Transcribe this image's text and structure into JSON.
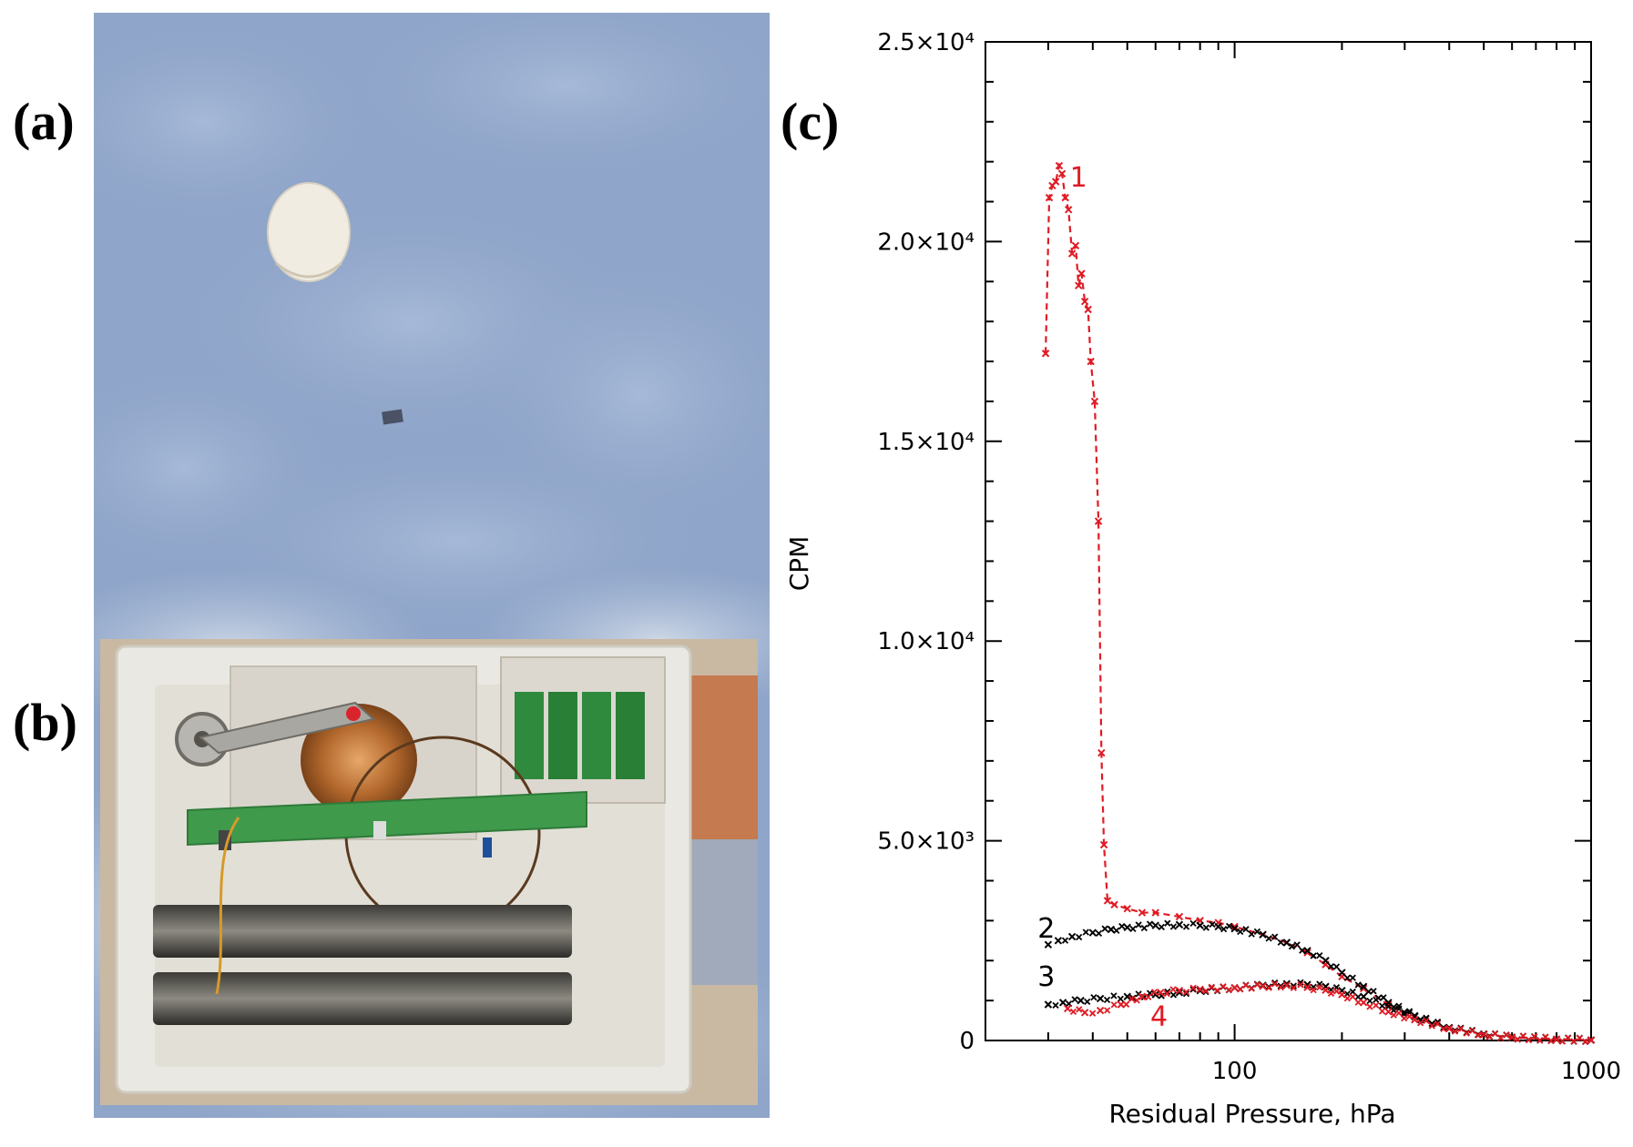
{
  "panels": {
    "a_label": "(a)",
    "b_label": "(b)",
    "c_label": "(c)"
  },
  "photos": {
    "sky_color": "#8fa5c9",
    "balloon_color": "#f1ece2",
    "foam_color": "#eae8e2"
  },
  "chart_data": {
    "type": "line",
    "xlabel": "Residual Pressure,  hPa",
    "ylabel": "CPM",
    "x_scale": "log",
    "xlim": [
      20,
      1000
    ],
    "ylim": [
      0,
      25000
    ],
    "x_ticks": [
      {
        "value": 100,
        "label": "100"
      },
      {
        "value": 1000,
        "label": "1000"
      }
    ],
    "y_ticks": [
      {
        "value": 0,
        "label": "0"
      },
      {
        "value": 5000,
        "label": "5.0×10³"
      },
      {
        "value": 10000,
        "label": "1.0×10⁴"
      },
      {
        "value": 15000,
        "label": "1.5×10⁴"
      },
      {
        "value": 20000,
        "label": "2.0×10⁴"
      },
      {
        "value": 25000,
        "label": "2.5×10⁴"
      }
    ],
    "series": [
      {
        "name": "1",
        "color": "#e01b24",
        "style": "dashed",
        "points": [
          [
            29.5,
            17200
          ],
          [
            30.2,
            21100
          ],
          [
            30.8,
            21400
          ],
          [
            31.5,
            21500
          ],
          [
            32.2,
            21900
          ],
          [
            32.8,
            21700
          ],
          [
            33.5,
            21100
          ],
          [
            34.2,
            20800
          ],
          [
            35,
            19700
          ],
          [
            35.8,
            19900
          ],
          [
            36.5,
            18900
          ],
          [
            37.2,
            19200
          ],
          [
            38,
            18500
          ],
          [
            38.8,
            18300
          ],
          [
            39.5,
            17000
          ],
          [
            40.5,
            16000
          ],
          [
            41.5,
            13000
          ],
          [
            42.3,
            7200
          ],
          [
            43,
            4900
          ],
          [
            44,
            3500
          ],
          [
            46,
            3400
          ],
          [
            50,
            3300
          ],
          [
            55,
            3200
          ],
          [
            60,
            3200
          ],
          [
            70,
            3100
          ],
          [
            80,
            3000
          ],
          [
            90,
            2950
          ],
          [
            100,
            2850
          ],
          [
            120,
            2650
          ],
          [
            140,
            2450
          ],
          [
            160,
            2200
          ],
          [
            180,
            1900
          ],
          [
            200,
            1600
          ],
          [
            230,
            1300
          ],
          [
            270,
            900
          ],
          [
            320,
            600
          ],
          [
            400,
            300
          ],
          [
            500,
            150
          ],
          [
            600,
            80
          ],
          [
            800,
            30
          ],
          [
            1000,
            10
          ]
        ]
      },
      {
        "name": "2",
        "color": "#000000",
        "style": "markers",
        "points": [
          [
            30,
            2400
          ],
          [
            32,
            2500
          ],
          [
            35,
            2600
          ],
          [
            40,
            2700
          ],
          [
            45,
            2780
          ],
          [
            50,
            2830
          ],
          [
            60,
            2880
          ],
          [
            70,
            2900
          ],
          [
            80,
            2880
          ],
          [
            90,
            2850
          ],
          [
            100,
            2800
          ],
          [
            120,
            2650
          ],
          [
            140,
            2450
          ],
          [
            160,
            2250
          ],
          [
            180,
            2000
          ],
          [
            200,
            1700
          ],
          [
            230,
            1350
          ],
          [
            270,
            950
          ],
          [
            320,
            620
          ],
          [
            400,
            320
          ],
          [
            500,
            160
          ],
          [
            600,
            80
          ],
          [
            800,
            30
          ],
          [
            1000,
            10
          ]
        ]
      },
      {
        "name": "3",
        "color": "#000000",
        "style": "markers",
        "points": [
          [
            30,
            900
          ],
          [
            33,
            950
          ],
          [
            37,
            1000
          ],
          [
            42,
            1050
          ],
          [
            50,
            1100
          ],
          [
            60,
            1150
          ],
          [
            70,
            1200
          ],
          [
            80,
            1250
          ],
          [
            100,
            1320
          ],
          [
            120,
            1380
          ],
          [
            140,
            1420
          ],
          [
            160,
            1400
          ],
          [
            180,
            1350
          ],
          [
            200,
            1250
          ],
          [
            230,
            1100
          ],
          [
            270,
            850
          ],
          [
            320,
            600
          ],
          [
            400,
            320
          ],
          [
            500,
            160
          ],
          [
            600,
            80
          ],
          [
            800,
            30
          ],
          [
            1000,
            10
          ]
        ]
      },
      {
        "name": "4",
        "color": "#e01b24",
        "style": "markers",
        "points": [
          [
            34,
            800
          ],
          [
            38,
            700
          ],
          [
            42,
            750
          ],
          [
            48,
            900
          ],
          [
            55,
            1100
          ],
          [
            62,
            1200
          ],
          [
            70,
            1250
          ],
          [
            80,
            1280
          ],
          [
            100,
            1320
          ],
          [
            120,
            1360
          ],
          [
            140,
            1380
          ],
          [
            160,
            1330
          ],
          [
            180,
            1260
          ],
          [
            200,
            1150
          ],
          [
            230,
            950
          ],
          [
            270,
            720
          ],
          [
            320,
            520
          ],
          [
            400,
            300
          ],
          [
            500,
            150
          ],
          [
            600,
            80
          ],
          [
            800,
            30
          ],
          [
            1000,
            10
          ]
        ]
      }
    ],
    "curve_labels": [
      {
        "text": "1",
        "color": "#e01b24",
        "x": 34.5,
        "y": 21600
      },
      {
        "text": "2",
        "color": "#000000",
        "x": 28,
        "y": 2800
      },
      {
        "text": "3",
        "color": "#000000",
        "x": 28,
        "y": 1600
      },
      {
        "text": "4",
        "color": "#e01b24",
        "x": 58,
        "y": 600
      }
    ]
  }
}
